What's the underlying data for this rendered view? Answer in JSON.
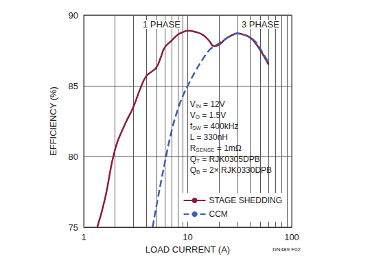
{
  "chart_data": {
    "type": "line",
    "x_label": "LOAD CURRENT (A)",
    "y_label": "EFFICIENCY (%)",
    "log": "x",
    "grid": true,
    "legend": "lower right",
    "xlim": [
      1,
      100
    ],
    "xticks": [
      1,
      10,
      100
    ],
    "ylim": [
      75,
      90
    ],
    "yticks": [
      75,
      80,
      85,
      90
    ],
    "series": [
      {
        "name": "STAGE SHEDDING",
        "color": "#8c1a3c",
        "line_style": "solid",
        "x": [
          1.35,
          1.6,
          2,
          2.5,
          3,
          3.5,
          4,
          4.5,
          5,
          5.5,
          6,
          7,
          8,
          9,
          10,
          12,
          14,
          16,
          18,
          20,
          23,
          27,
          30,
          35,
          40,
          45,
          50,
          55,
          60
        ],
        "values": [
          75,
          77,
          80.5,
          82.3,
          83.5,
          84.8,
          85.7,
          86,
          86.3,
          87,
          87.7,
          88.2,
          88.6,
          88.8,
          88.9,
          88.8,
          88.6,
          88.2,
          87.8,
          87.9,
          88.3,
          88.6,
          88.7,
          88.6,
          88.4,
          88.0,
          87.5,
          87.0,
          86.5
        ]
      },
      {
        "name": "CCM",
        "color": "#3a5fae",
        "line_style": "dashed",
        "x": [
          4.6,
          5,
          6,
          7,
          8,
          9,
          10,
          12,
          14,
          16,
          18,
          20,
          23,
          27,
          30,
          35,
          40,
          45,
          50,
          55,
          60
        ],
        "values": [
          75,
          76.5,
          79.5,
          81.8,
          83.3,
          84.3,
          85,
          86.1,
          86.9,
          87.5,
          87.8,
          88.0,
          88.3,
          88.6,
          88.7,
          88.6,
          88.4,
          88.1,
          87.6,
          87.1,
          86.6
        ]
      }
    ],
    "annotations": [
      {
        "text": "1 PHASE",
        "x": 5.6,
        "y": 89.35
      },
      {
        "text": "3 PHASE",
        "x": 50,
        "y": 89.35
      }
    ],
    "parameters": {
      "x": 10.5,
      "y": 83.7,
      "lines": [
        {
          "text": "V",
          "sub": "IN",
          "after": " = 12V"
        },
        {
          "text": "V",
          "sub": "O",
          "after": " = 1.5V"
        },
        {
          "text": "f",
          "sub": "SW",
          "after": " = 400kHz"
        },
        {
          "text": "L = 330nH"
        },
        {
          "text": "R",
          "sub": "SENSE",
          "after": " = 1mΩ"
        },
        {
          "text": "Q",
          "sub": "T",
          "after": " = RJK0305DPB"
        },
        {
          "text": "Q",
          "sub": "B",
          "after": " = 2× RJK0330DPB"
        }
      ]
    },
    "footnote": "DN489 F02"
  }
}
